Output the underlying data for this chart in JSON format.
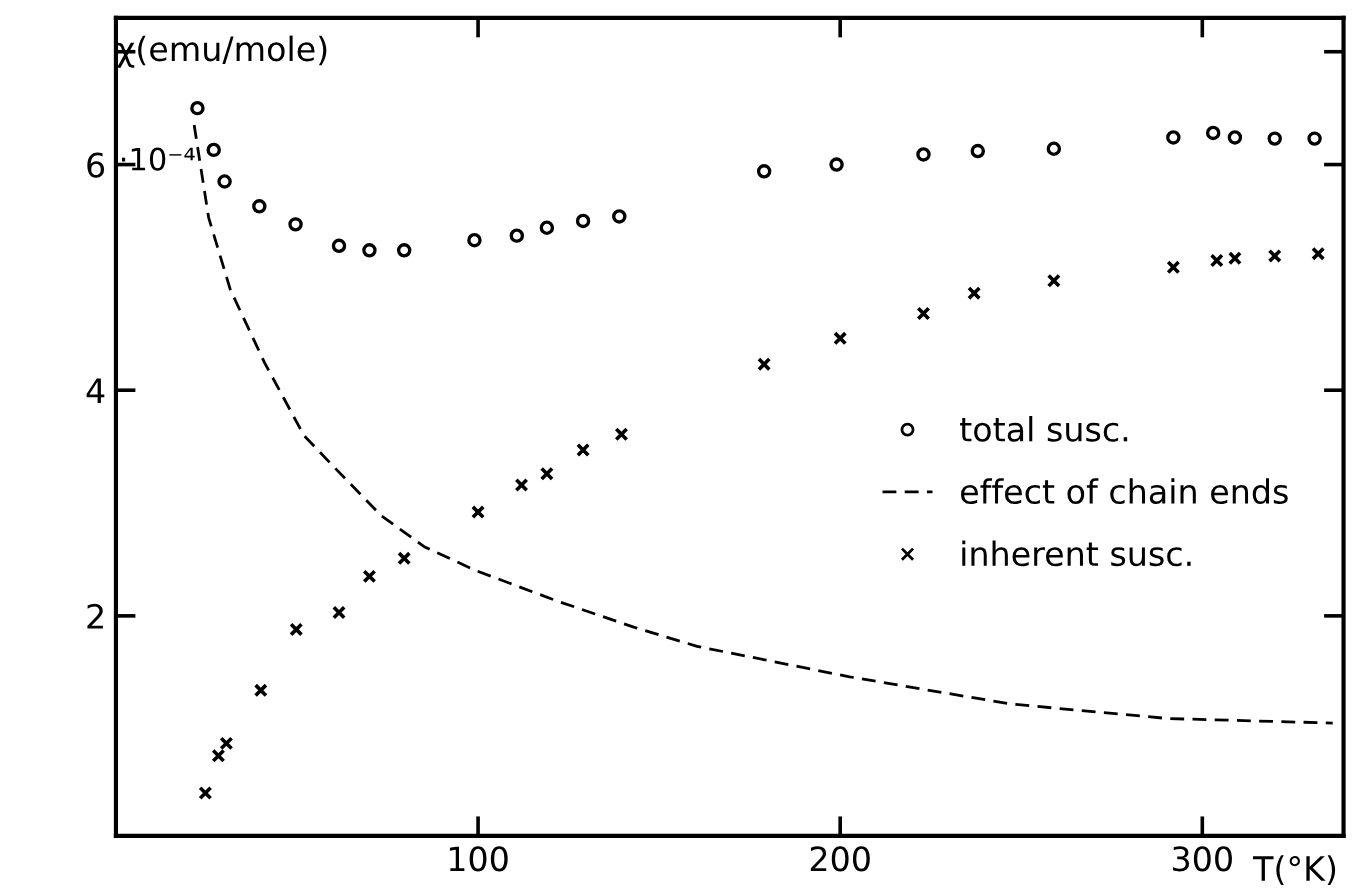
{
  "chart_data": {
    "type": "scatter",
    "xlabel": "T(°K)",
    "ylabel": "χ(emu/mole)",
    "xlim": [
      0,
      339
    ],
    "ylim": [
      0.05,
      7.3
    ],
    "xticks": [
      100,
      200,
      300
    ],
    "yticks": [
      2,
      4,
      6,
      {
        "value": 7,
        "label": null
      }
    ],
    "annotations": [
      "·10⁻⁴"
    ],
    "grid": false,
    "legend": "right",
    "series": [
      {
        "name": "total susc.",
        "marker": "circle",
        "color": "#000000",
        "x": [
          22.5,
          27,
          30,
          39.6,
          49.6,
          61.6,
          70,
          79.6,
          99,
          110.7,
          119,
          129,
          139,
          179,
          199,
          223,
          238,
          259,
          292,
          303,
          309,
          320,
          331
        ],
        "values": [
          6.5,
          6.13,
          5.85,
          5.63,
          5.47,
          5.28,
          5.24,
          5.24,
          5.33,
          5.37,
          5.44,
          5.5,
          5.54,
          5.94,
          6.0,
          6.09,
          6.12,
          6.14,
          6.24,
          6.28,
          6.24,
          6.23,
          6.23
        ]
      },
      {
        "name": "effect of chain ends",
        "type": "line",
        "line_style": "dashed",
        "marker": "none",
        "color": "#000000",
        "x": [
          21.6,
          25.6,
          31.6,
          41.1,
          51.9,
          60.5,
          73.2,
          85.3,
          99.5,
          122,
          143,
          160.5,
          202.6,
          246.8,
          290.5,
          336
        ],
        "values": [
          6.35,
          5.53,
          4.89,
          4.24,
          3.6,
          3.31,
          2.89,
          2.61,
          2.4,
          2.13,
          1.9,
          1.73,
          1.46,
          1.22,
          1.09,
          1.05
        ]
      },
      {
        "name": "inherent susc.",
        "marker": "cross",
        "color": "#000000",
        "x": [
          24.7,
          28.3,
          30.5,
          40,
          49.8,
          61.6,
          70,
          79.6,
          100,
          112,
          119,
          129,
          139.6,
          179,
          200,
          223,
          237,
          259,
          292,
          304,
          309,
          320,
          332
        ],
        "values": [
          0.43,
          0.76,
          0.87,
          1.34,
          1.88,
          2.03,
          2.35,
          2.51,
          2.92,
          3.16,
          3.26,
          3.47,
          3.61,
          4.23,
          4.46,
          4.68,
          4.86,
          4.97,
          5.09,
          5.15,
          5.17,
          5.19,
          5.21
        ]
      }
    ]
  }
}
